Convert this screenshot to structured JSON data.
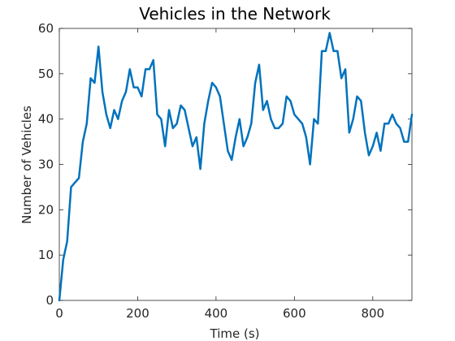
{
  "chart_data": {
    "type": "line",
    "title": "Vehicles in the Network",
    "xlabel": "Time (s)",
    "ylabel": "Number of Vehicles",
    "xlim": [
      0,
      900
    ],
    "ylim": [
      0,
      60
    ],
    "xticks": [
      0,
      200,
      400,
      600,
      800
    ],
    "yticks": [
      0,
      10,
      20,
      30,
      40,
      50,
      60
    ],
    "xtick_labels": [
      "0",
      "200",
      "400",
      "600",
      "800"
    ],
    "ytick_labels": [
      "0",
      "10",
      "20",
      "30",
      "40",
      "50",
      "60"
    ],
    "grid": false,
    "line_color": "#0072BD",
    "axis_color": "#262626",
    "series": [
      {
        "x": [
          0,
          10,
          20,
          30,
          40,
          50,
          60,
          70,
          80,
          90,
          100,
          110,
          120,
          130,
          140,
          150,
          160,
          170,
          180,
          190,
          200,
          210,
          220,
          230,
          240,
          250,
          260,
          270,
          280,
          290,
          300,
          310,
          320,
          330,
          340,
          350,
          360,
          370,
          380,
          390,
          400,
          410,
          420,
          430,
          440,
          450,
          460,
          470,
          480,
          490,
          500,
          510,
          520,
          530,
          540,
          550,
          560,
          570,
          580,
          590,
          600,
          610,
          620,
          630,
          640,
          650,
          660,
          670,
          680,
          690,
          700,
          710,
          720,
          730,
          740,
          750,
          760,
          770,
          780,
          790,
          800,
          810,
          820,
          830,
          840,
          850,
          860,
          870,
          880,
          890,
          900
        ],
        "values": [
          0,
          9,
          13,
          25,
          26,
          27,
          35,
          39,
          49,
          48,
          56,
          46,
          41,
          38,
          42,
          40,
          44,
          46,
          51,
          47,
          47,
          45,
          51,
          51,
          53,
          41,
          40,
          34,
          42,
          38,
          39,
          43,
          42,
          38,
          34,
          36,
          29,
          39,
          44,
          48,
          47,
          45,
          39,
          33,
          31,
          36,
          40,
          34,
          36,
          39,
          48,
          52,
          42,
          44,
          40,
          38,
          38,
          39,
          45,
          44,
          41,
          40,
          39,
          36,
          30,
          40,
          39,
          55,
          55,
          59,
          55,
          55,
          49,
          51,
          37,
          40,
          45,
          44,
          37,
          32,
          34,
          37,
          33,
          39,
          39,
          41,
          39,
          38,
          35,
          35,
          41
        ]
      }
    ]
  }
}
